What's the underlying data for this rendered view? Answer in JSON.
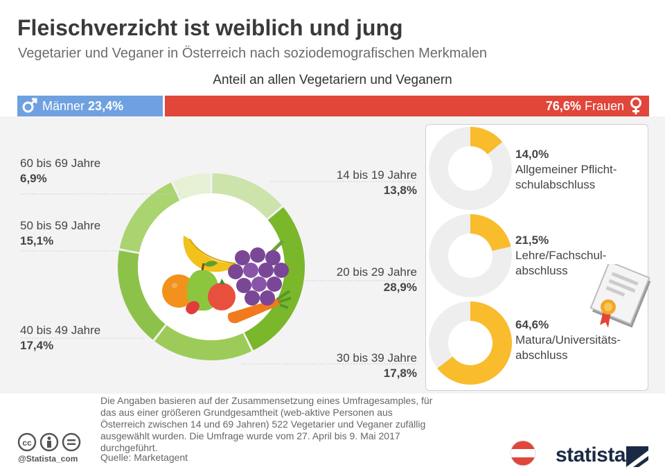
{
  "header": {
    "title": "Fleischverzicht ist weiblich und jung",
    "subtitle": "Vegetarier und Veganer in Österreich nach soziodemografischen Merkmalen",
    "share_heading": "Anteil an allen Vegetariern und Veganern"
  },
  "colors": {
    "male": "#6fa1e0",
    "female": "#e0463a",
    "age_palette": [
      "#cde3ac",
      "#7bb72b",
      "#9ccb5a",
      "#8dc24a",
      "#aad46f",
      "#e6f1d5"
    ],
    "edu": "#f8bc2c",
    "edu_track": "#eeeeee"
  },
  "chart_data": [
    {
      "type": "bar",
      "categories": [
        "Männer",
        "Frauen"
      ],
      "values": [
        23.4,
        76.6
      ],
      "value_labels": [
        "23,4%",
        "76,6%"
      ],
      "unit": "%"
    },
    {
      "type": "pie",
      "style": "donut",
      "categories": [
        "14 bis 19 Jahre",
        "20 bis 29 Jahre",
        "30 bis 39 Jahre",
        "40 bis 49 Jahre",
        "50 bis 59 Jahre",
        "60 bis 69 Jahre"
      ],
      "values": [
        13.8,
        28.9,
        17.8,
        17.4,
        15.1,
        6.9
      ],
      "value_labels": [
        "13,8%",
        "28,9%",
        "17,8%",
        "17,4%",
        "15,1%",
        "6,9%"
      ],
      "unit": "%"
    },
    {
      "type": "pie",
      "style": "donut",
      "categories": [
        "Allgemeiner Pflicht-schulabschluss",
        "Lehre/Fachschul-abschluss",
        "Matura/Universitäts-abschluss"
      ],
      "lines": [
        [
          "Allgemeiner Pflicht-",
          "schulabschluss"
        ],
        [
          "Lehre/Fachschul-",
          "abschluss"
        ],
        [
          "Matura/Universitäts-",
          "abschluss"
        ]
      ],
      "values": [
        14.0,
        21.5,
        64.6
      ],
      "value_labels": [
        "14,0%",
        "21,5%",
        "64,6%"
      ],
      "unit": "%"
    }
  ],
  "footer": {
    "note": "Die Angaben basieren auf der Zusammensetzung eines Umfragesamples, für das aus einer größeren Grundgesamtheit (web-aktive Personen aus Österreich zwischen 14 und 69 Jahren) 522 Vegetarier und Veganer zufällig ausgewählt wurden. Die Umfrage wurde vom 27. April bis 9. Mai 2017 durchgeführt.",
    "source": "Quelle: Marketagent",
    "handle": "@Statista_com",
    "brand": "statista"
  },
  "icons": [
    "male-symbol-icon",
    "female-symbol-icon",
    "fruit-illustration-icon",
    "certificate-icon",
    "cc-icon",
    "by-icon",
    "nd-icon",
    "austria-flag-icon",
    "statista-logo-icon"
  ]
}
